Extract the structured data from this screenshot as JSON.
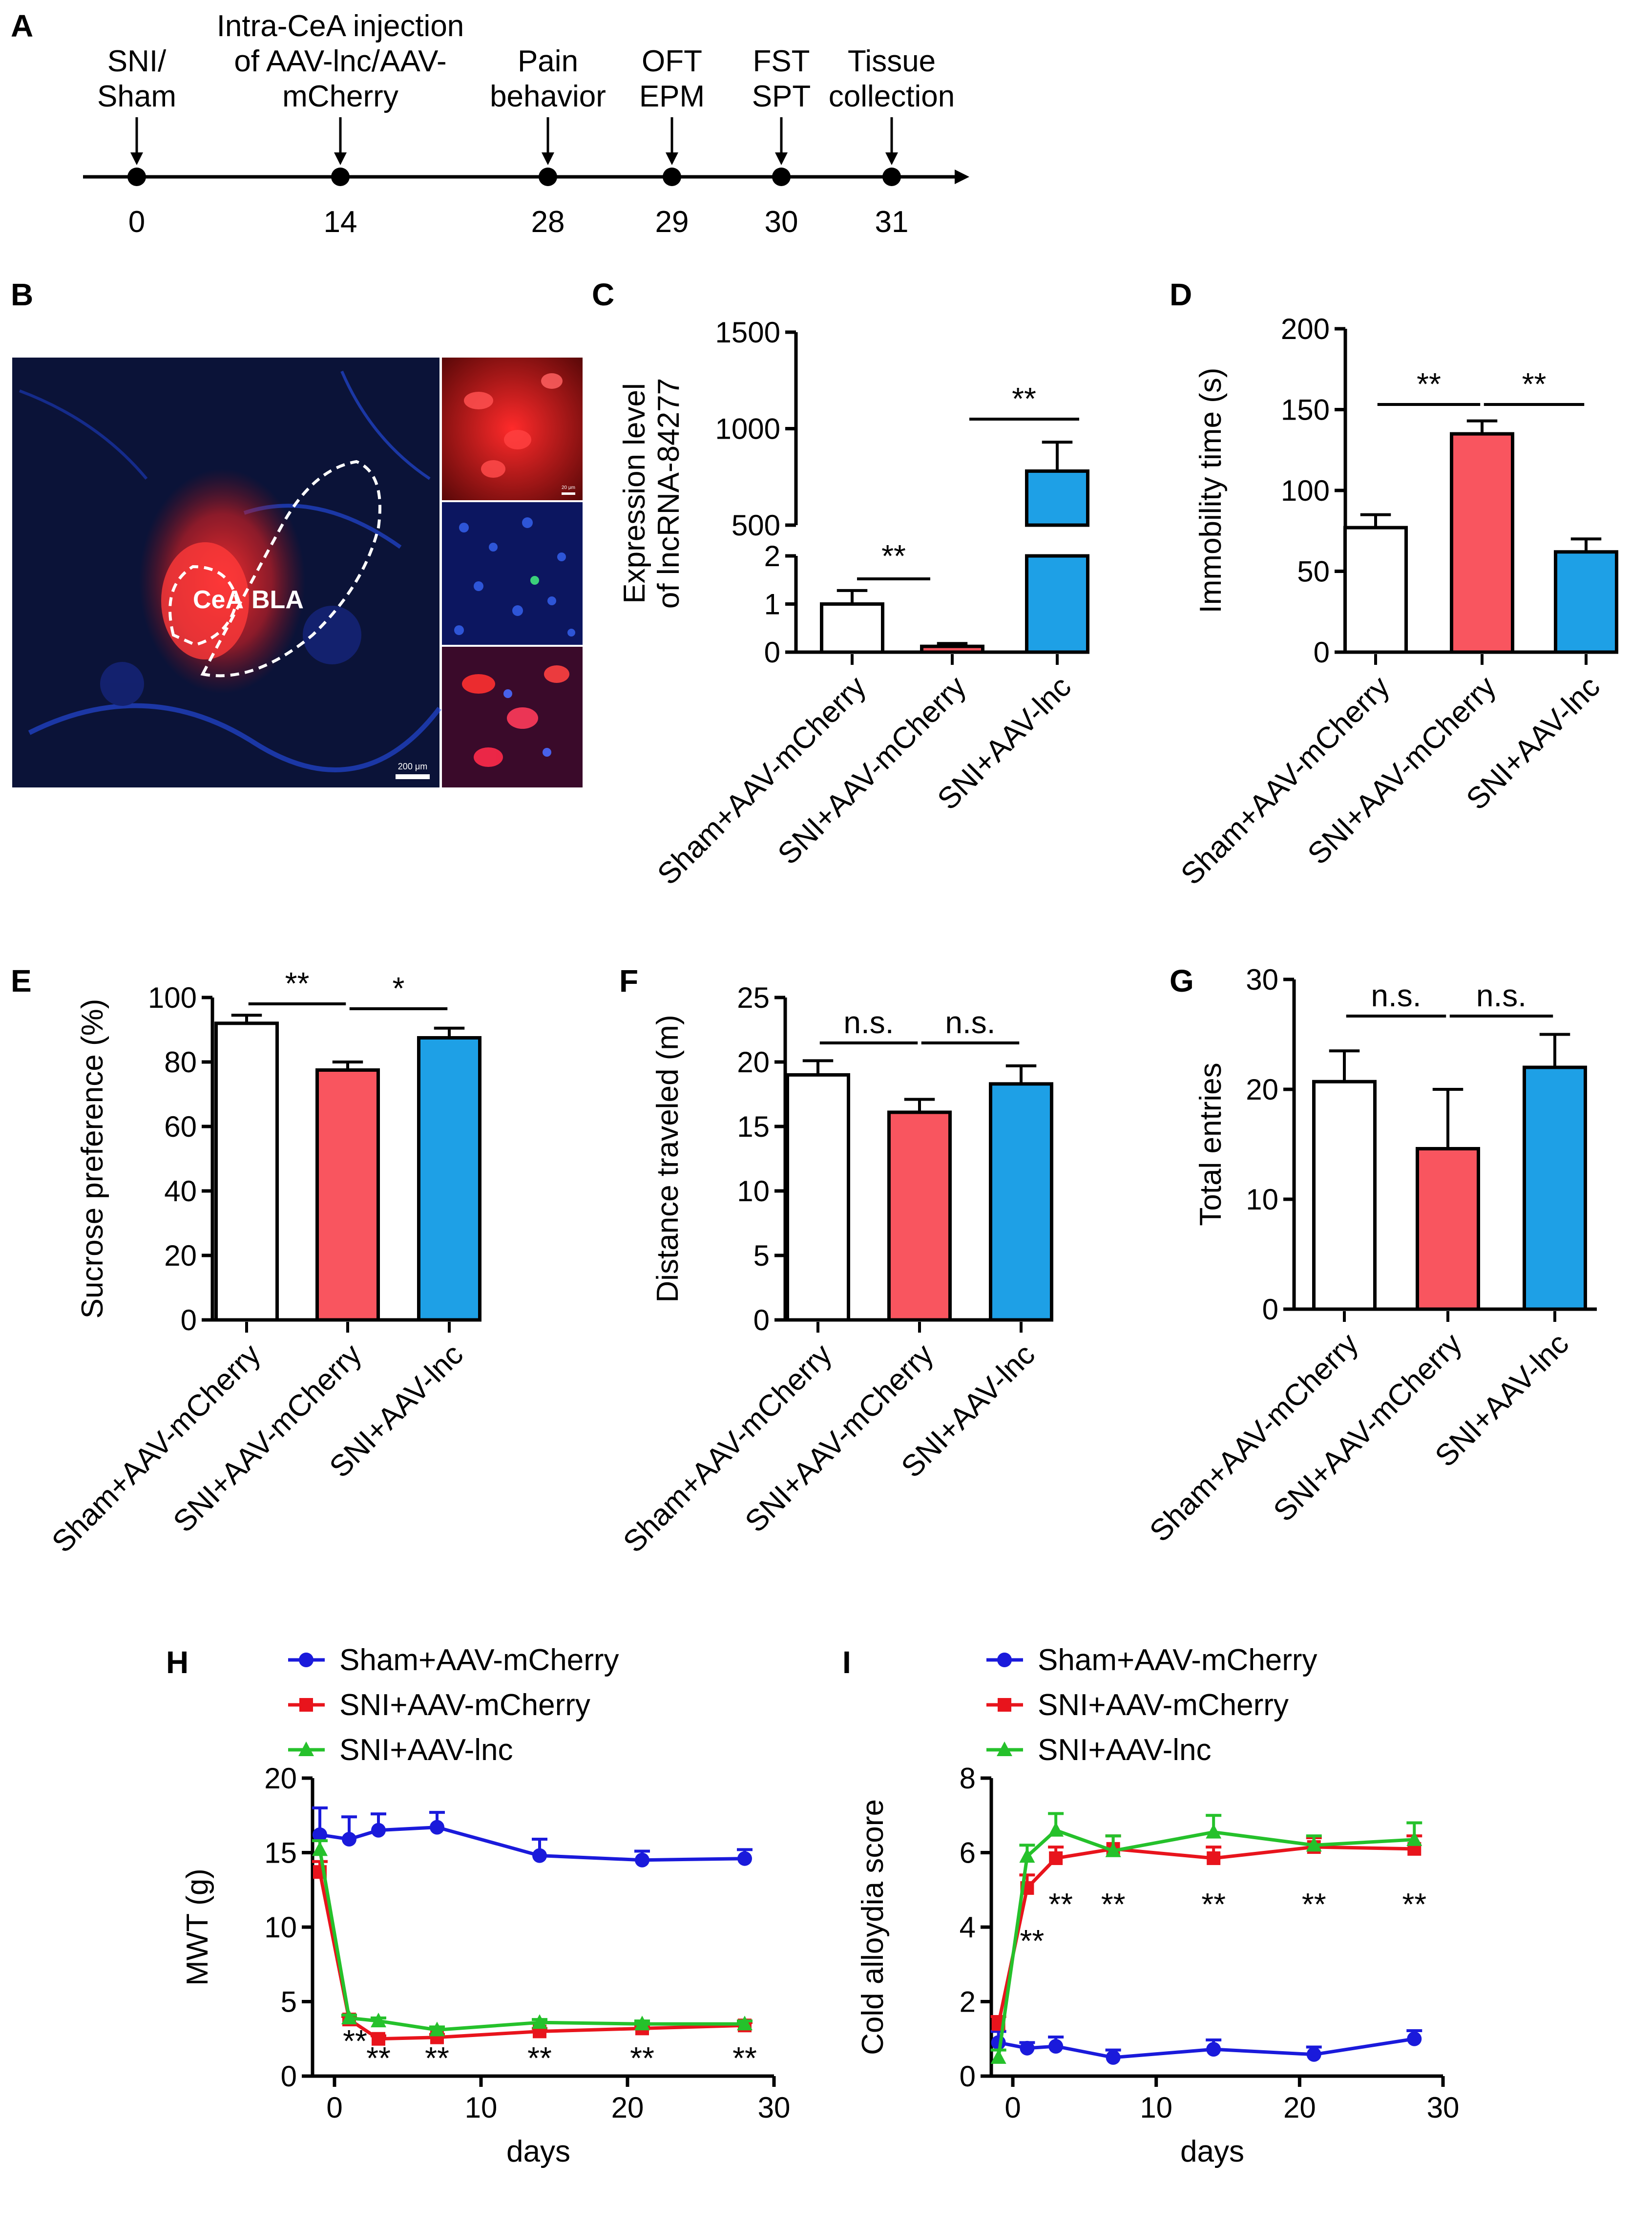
{
  "panel_letters": [
    "A",
    "B",
    "C",
    "D",
    "E",
    "F",
    "G",
    "H",
    "I"
  ],
  "timeline": {
    "events": [
      {
        "day": "0",
        "lines": [
          "SNI/",
          "Sham"
        ]
      },
      {
        "day": "14",
        "lines": [
          "Intra-CeA injection",
          "of AAV-lnc/AAV-",
          "mCherry"
        ]
      },
      {
        "day": "28",
        "lines": [
          "Pain",
          "behavior"
        ]
      },
      {
        "day": "29",
        "lines": [
          "OFT",
          "EPM"
        ]
      },
      {
        "day": "30",
        "lines": [
          "FST",
          "SPT"
        ]
      },
      {
        "day": "31",
        "lines": [
          "Tissue",
          "collection"
        ]
      }
    ]
  },
  "image_b": {
    "labels": {
      "cea": "CeA",
      "bla": "BLA"
    },
    "main_scale_bar_label": "200 μm",
    "inset_scale_bar_label": "20 μm",
    "colors": {
      "background": "#0b1338",
      "red_signal": "#ff2a2a",
      "blue_signal": "#2a55ff"
    }
  },
  "groups": [
    "Sham+AAV-mCherry",
    "SNI+AAV-mCherry",
    "SNI+AAV-lnc"
  ],
  "group_colors": [
    "#ffffff",
    "#f9555f",
    "#1ea0e6"
  ],
  "chart_data": [
    {
      "panel": "C",
      "type": "bar",
      "categories": [
        "Sham+AAV-mCherry",
        "SNI+AAV-mCherry",
        "SNI+AAV-lnc"
      ],
      "values": [
        1.0,
        0.12,
        780
      ],
      "errors": [
        0.28,
        0.06,
        150
      ],
      "ylabel": "Expression level\nof lncRNA-84277",
      "ylim_segments": [
        [
          0,
          2
        ],
        [
          500,
          1500
        ]
      ],
      "yticks_lower": [
        "0",
        "1",
        "2"
      ],
      "yticks_upper": [
        "500",
        "1000",
        "1500"
      ],
      "significance": [
        {
          "from": 0,
          "to": 1,
          "label": "**"
        },
        {
          "from": 2,
          "to": 2,
          "label": "**"
        }
      ]
    },
    {
      "panel": "D",
      "type": "bar",
      "categories": [
        "Sham+AAV-mCherry",
        "SNI+AAV-mCherry",
        "SNI+AAV-lnc"
      ],
      "values": [
        77,
        135,
        62
      ],
      "errors": [
        8,
        8,
        8
      ],
      "ylabel": "Immobility time (s)",
      "ylim": [
        0,
        200
      ],
      "yticks": [
        "0",
        "50",
        "100",
        "150",
        "200"
      ],
      "significance": [
        {
          "from": 0,
          "to": 1,
          "label": "**"
        },
        {
          "from": 1,
          "to": 2,
          "label": "**"
        }
      ]
    },
    {
      "panel": "E",
      "type": "bar",
      "categories": [
        "Sham+AAV-mCherry",
        "SNI+AAV-mCherry",
        "SNI+AAV-lnc"
      ],
      "values": [
        92,
        77.5,
        87.5
      ],
      "errors": [
        2.5,
        2.5,
        3
      ],
      "ylabel": "Sucrose preference (%)",
      "ylim": [
        0,
        100
      ],
      "yticks": [
        "0",
        "20",
        "40",
        "60",
        "80",
        "100"
      ],
      "significance": [
        {
          "from": 0,
          "to": 1,
          "label": "**"
        },
        {
          "from": 1,
          "to": 2,
          "label": "*"
        }
      ]
    },
    {
      "panel": "F",
      "type": "bar",
      "categories": [
        "Sham+AAV-mCherry",
        "SNI+AAV-mCherry",
        "SNI+AAV-lnc"
      ],
      "values": [
        19,
        16.1,
        18.3
      ],
      "errors": [
        1.1,
        1.0,
        1.4
      ],
      "ylabel": "Distance traveled (m)",
      "ylim": [
        0,
        25
      ],
      "yticks": [
        "0",
        "5",
        "10",
        "15",
        "20",
        "25"
      ],
      "significance": [
        {
          "from": 0,
          "to": 1,
          "label": "n.s."
        },
        {
          "from": 1,
          "to": 2,
          "label": "n.s."
        }
      ]
    },
    {
      "panel": "G",
      "type": "bar",
      "categories": [
        "Sham+AAV-mCherry",
        "SNI+AAV-mCherry",
        "SNI+AAV-lnc"
      ],
      "values": [
        20.7,
        14.6,
        22
      ],
      "errors": [
        2.8,
        5.4,
        3.0
      ],
      "ylabel": "Total entries",
      "ylim": [
        0,
        30
      ],
      "yticks": [
        "0",
        "10",
        "20",
        "30"
      ],
      "significance": [
        {
          "from": 0,
          "to": 1,
          "label": "n.s."
        },
        {
          "from": 1,
          "to": 2,
          "label": "n.s."
        }
      ]
    },
    {
      "panel": "H",
      "type": "line",
      "x": [
        -1,
        1,
        3,
        7,
        14,
        21,
        28
      ],
      "series": [
        {
          "name": "Sham+AAV-mCherry",
          "color": "#1a1adb",
          "marker": "circle",
          "values": [
            16.2,
            15.9,
            16.5,
            16.7,
            14.8,
            14.5,
            14.6
          ],
          "errors": [
            1.8,
            1.5,
            1.1,
            1.0,
            1.1,
            0.6,
            0.6
          ]
        },
        {
          "name": "SNI+AAV-mCherry",
          "color": "#e8141c",
          "marker": "square",
          "values": [
            13.7,
            3.8,
            2.5,
            2.6,
            3.0,
            3.2,
            3.4
          ],
          "errors": [
            0.7,
            0.2,
            0.2,
            0.2,
            0.2,
            0.2,
            0.2
          ]
        },
        {
          "name": "SNI+AAV-lnc",
          "color": "#25c12b",
          "marker": "triangle",
          "values": [
            15.2,
            3.9,
            3.7,
            3.1,
            3.6,
            3.5,
            3.5
          ],
          "errors": [
            0.6,
            0.2,
            0.2,
            0.2,
            0.2,
            0.2,
            0.2
          ]
        }
      ],
      "xlabel": "days",
      "ylabel": "MWT (g)",
      "xlim": [
        -1.5,
        30
      ],
      "ylim": [
        0,
        20
      ],
      "xticks": [
        "0",
        "10",
        "20",
        "30"
      ],
      "yticks": [
        "0",
        "5",
        "10",
        "15",
        "20"
      ],
      "annotations": [
        {
          "x": 1,
          "label": "**"
        },
        {
          "x": 3,
          "label": "**"
        },
        {
          "x": 7,
          "label": "**"
        },
        {
          "x": 14,
          "label": "**"
        },
        {
          "x": 21,
          "label": "**"
        },
        {
          "x": 28,
          "label": "**"
        }
      ]
    },
    {
      "panel": "I",
      "type": "line",
      "x": [
        -1,
        1,
        3,
        7,
        14,
        21,
        28
      ],
      "series": [
        {
          "name": "Sham+AAV-mCherry",
          "color": "#1a1adb",
          "marker": "circle",
          "values": [
            0.9,
            0.75,
            0.8,
            0.5,
            0.72,
            0.58,
            1.0
          ],
          "errors": [
            0.3,
            0.15,
            0.25,
            0.2,
            0.25,
            0.2,
            0.22
          ]
        },
        {
          "name": "SNI+AAV-mCherry",
          "color": "#e8141c",
          "marker": "square",
          "values": [
            1.4,
            5.05,
            5.85,
            6.1,
            5.85,
            6.15,
            6.1
          ],
          "errors": [
            0.2,
            0.35,
            0.3,
            0.35,
            0.3,
            0.25,
            0.35
          ]
        },
        {
          "name": "SNI+AAV-lnc",
          "color": "#25c12b",
          "marker": "triangle",
          "values": [
            0.5,
            5.9,
            6.6,
            6.05,
            6.55,
            6.2,
            6.35
          ],
          "errors": [
            0.2,
            0.3,
            0.45,
            0.4,
            0.45,
            0.25,
            0.45
          ]
        }
      ],
      "xlabel": "days",
      "ylabel": "Cold alloydia score",
      "xlim": [
        -1.5,
        30
      ],
      "ylim": [
        0,
        8
      ],
      "xticks": [
        "0",
        "10",
        "20",
        "30"
      ],
      "yticks": [
        "0",
        "2",
        "4",
        "6",
        "8"
      ],
      "annotations": [
        {
          "x": 1,
          "label": "**"
        },
        {
          "x": 3,
          "label": "**"
        },
        {
          "x": 7,
          "label": "**"
        },
        {
          "x": 14,
          "label": "**"
        },
        {
          "x": 21,
          "label": "**"
        },
        {
          "x": 28,
          "label": "**"
        }
      ]
    }
  ]
}
